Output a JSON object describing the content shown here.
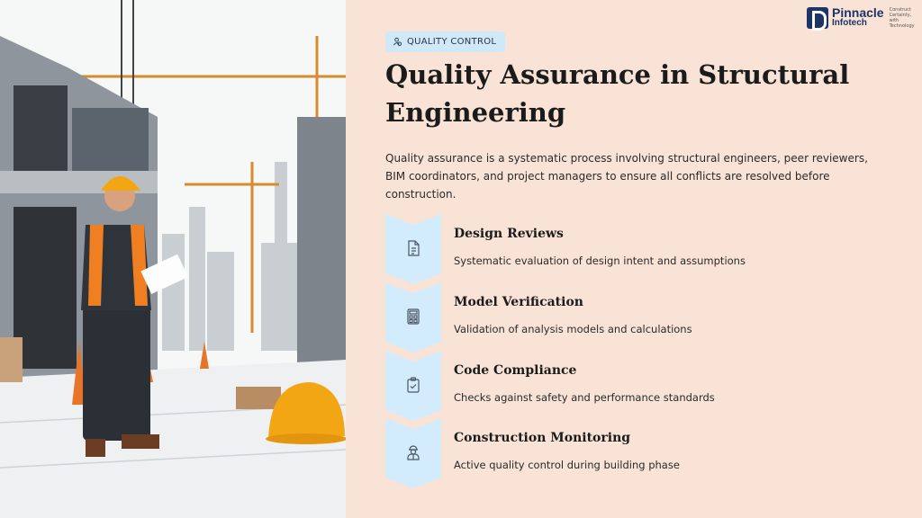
{
  "logo": {
    "name_line1": "Pinnacle",
    "name_line2": "Infotech",
    "tagline": "Construct Certainty, with Technology"
  },
  "badge": {
    "icon": "users-icon",
    "label": "QUALITY CONTROL"
  },
  "title": "Quality Assurance in Structural Engineering",
  "intro": "Quality assurance is a systematic process involving structural engineers, peer reviewers, BIM coordinators, and project managers to ensure all conflicts are resolved before construction.",
  "colors": {
    "background": "#f9e3d6",
    "chevron": "#d3ecfb",
    "badge": "#cfe9f8",
    "logo": "#1d3466"
  },
  "steps": [
    {
      "icon": "document-icon",
      "title": "Design Reviews",
      "description": "Systematic evaluation of design intent and assumptions"
    },
    {
      "icon": "calculator-icon",
      "title": "Model Verification",
      "description": "Validation of analysis models and calculations"
    },
    {
      "icon": "clipboard-check-icon",
      "title": "Code Compliance",
      "description": "Checks against safety and performance standards"
    },
    {
      "icon": "construction-worker-icon",
      "title": "Construction Monitoring",
      "description": "Active quality control during building phase"
    }
  ]
}
